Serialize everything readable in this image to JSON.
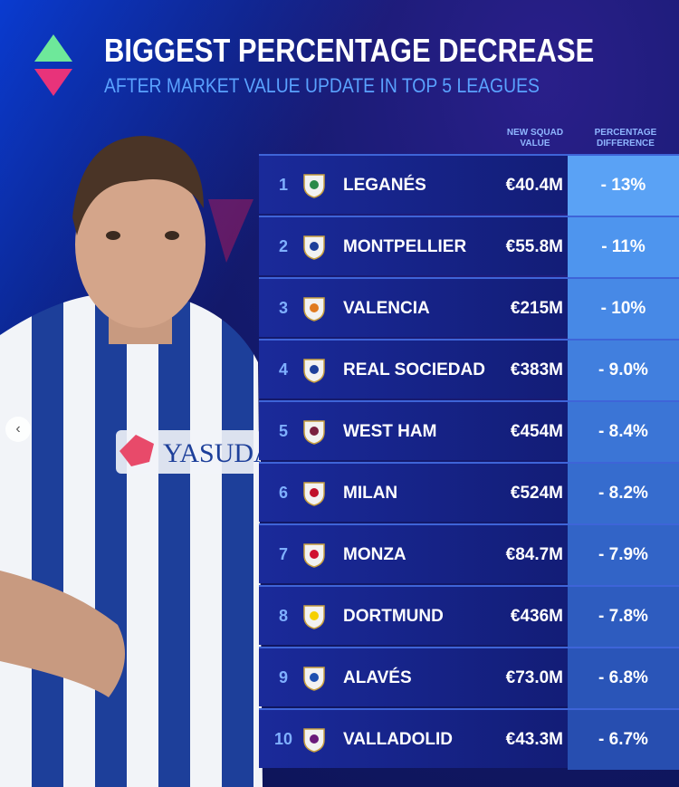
{
  "header": {
    "title": "BIGGEST PERCENTAGE DECREASE",
    "subtitle": "AFTER MARKET VALUE UPDATE IN TOP 5 LEAGUES"
  },
  "columns": {
    "value": "NEW SQUAD VALUE",
    "pct": "PERCENTAGE DIFFERENCE"
  },
  "colors": {
    "up": "#6ee89a",
    "down": "#e8337a",
    "accent": "#5aa2ff"
  },
  "sponsor": "YASUDA",
  "carousel_icon": "chevron-left-icon",
  "rows": [
    {
      "rank": "1",
      "team": "LEGANÉS",
      "value": "€40.4M",
      "pct": "- 13%",
      "crest": "leganes-crest-icon"
    },
    {
      "rank": "2",
      "team": "MONTPELLIER",
      "value": "€55.8M",
      "pct": "- 11%",
      "crest": "montpellier-crest-icon"
    },
    {
      "rank": "3",
      "team": "VALENCIA",
      "value": "€215M",
      "pct": "- 10%",
      "crest": "valencia-crest-icon"
    },
    {
      "rank": "4",
      "team": "REAL SOCIEDAD",
      "value": "€383M",
      "pct": "- 9.0%",
      "crest": "real-sociedad-crest-icon"
    },
    {
      "rank": "5",
      "team": "WEST HAM",
      "value": "€454M",
      "pct": "- 8.4%",
      "crest": "west-ham-crest-icon"
    },
    {
      "rank": "6",
      "team": "MILAN",
      "value": "€524M",
      "pct": "- 8.2%",
      "crest": "milan-crest-icon"
    },
    {
      "rank": "7",
      "team": "MONZA",
      "value": "€84.7M",
      "pct": "- 7.9%",
      "crest": "monza-crest-icon"
    },
    {
      "rank": "8",
      "team": "DORTMUND",
      "value": "€436M",
      "pct": "- 7.8%",
      "crest": "dortmund-crest-icon"
    },
    {
      "rank": "9",
      "team": "ALAVÉS",
      "value": "€73.0M",
      "pct": "- 6.8%",
      "crest": "alaves-crest-icon"
    },
    {
      "rank": "10",
      "team": "VALLADOLID",
      "value": "€43.3M",
      "pct": "- 6.7%",
      "crest": "valladolid-crest-icon"
    }
  ]
}
